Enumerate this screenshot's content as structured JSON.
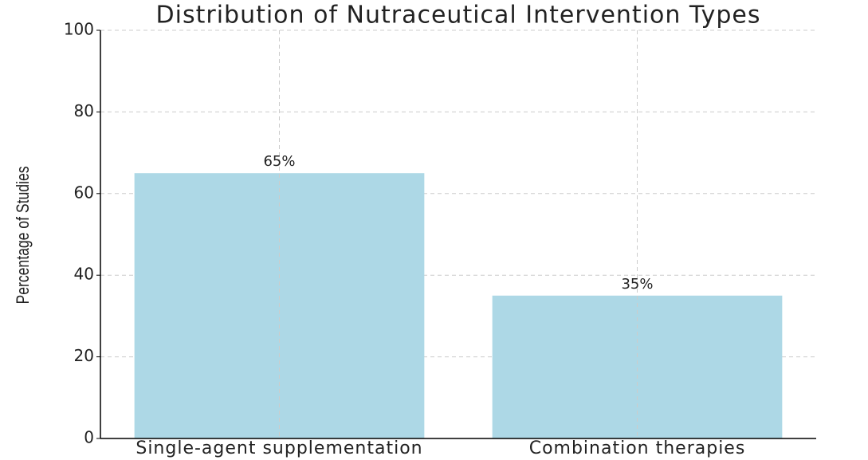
{
  "chart_data": {
    "type": "bar",
    "title": "Distribution of Nutraceutical Intervention Types",
    "ylabel": "Percentage of Studies",
    "categories": [
      "Single-agent supplementation",
      "Combination therapies"
    ],
    "values": [
      65,
      35
    ],
    "value_labels": [
      "65%",
      "35%"
    ],
    "color": "#add8e6",
    "ylim": [
      0,
      100
    ],
    "yticks": [
      0,
      20,
      40,
      60,
      80,
      100
    ],
    "grid": true
  }
}
